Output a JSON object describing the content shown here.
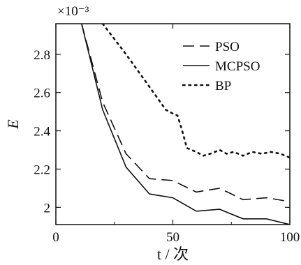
{
  "chart_data": {
    "type": "line",
    "title": "",
    "xlabel": "t / 次",
    "ylabel": "E",
    "y_multiplier_label": "×10⁻³",
    "xlim": [
      0,
      100
    ],
    "ylim": [
      1.91,
      2.96
    ],
    "x_ticks": [
      0,
      50,
      100
    ],
    "y_ticks": [
      2.0,
      2.2,
      2.4,
      2.6,
      2.8
    ],
    "y_tick_labels": [
      "2",
      "2.2",
      "2.4",
      "2.6",
      "2.8"
    ],
    "legend_position": "top-right",
    "grid": false,
    "series": [
      {
        "name": "PSO",
        "style": "dashed",
        "color": "#111111",
        "x": [
          11,
          20,
          30,
          40,
          50,
          60,
          70,
          80,
          90,
          100
        ],
        "y": [
          2.96,
          2.55,
          2.28,
          2.15,
          2.14,
          2.08,
          2.1,
          2.04,
          2.05,
          2.03
        ]
      },
      {
        "name": "MCPSO",
        "style": "solid",
        "color": "#111111",
        "x": [
          11,
          20,
          30,
          40,
          50,
          60,
          70,
          80,
          90,
          100
        ],
        "y": [
          2.96,
          2.51,
          2.21,
          2.07,
          2.05,
          1.98,
          1.99,
          1.94,
          1.94,
          1.91
        ]
      },
      {
        "name": "BP",
        "style": "dotted",
        "color": "#111111",
        "x": [
          20,
          30,
          40,
          47,
          50,
          52,
          54,
          56,
          60,
          63,
          66,
          70,
          73,
          76,
          80,
          84,
          88,
          92,
          96,
          100
        ],
        "y": [
          2.96,
          2.8,
          2.63,
          2.51,
          2.49,
          2.48,
          2.4,
          2.31,
          2.29,
          2.27,
          2.28,
          2.3,
          2.28,
          2.29,
          2.27,
          2.29,
          2.28,
          2.29,
          2.28,
          2.26
        ]
      }
    ]
  }
}
